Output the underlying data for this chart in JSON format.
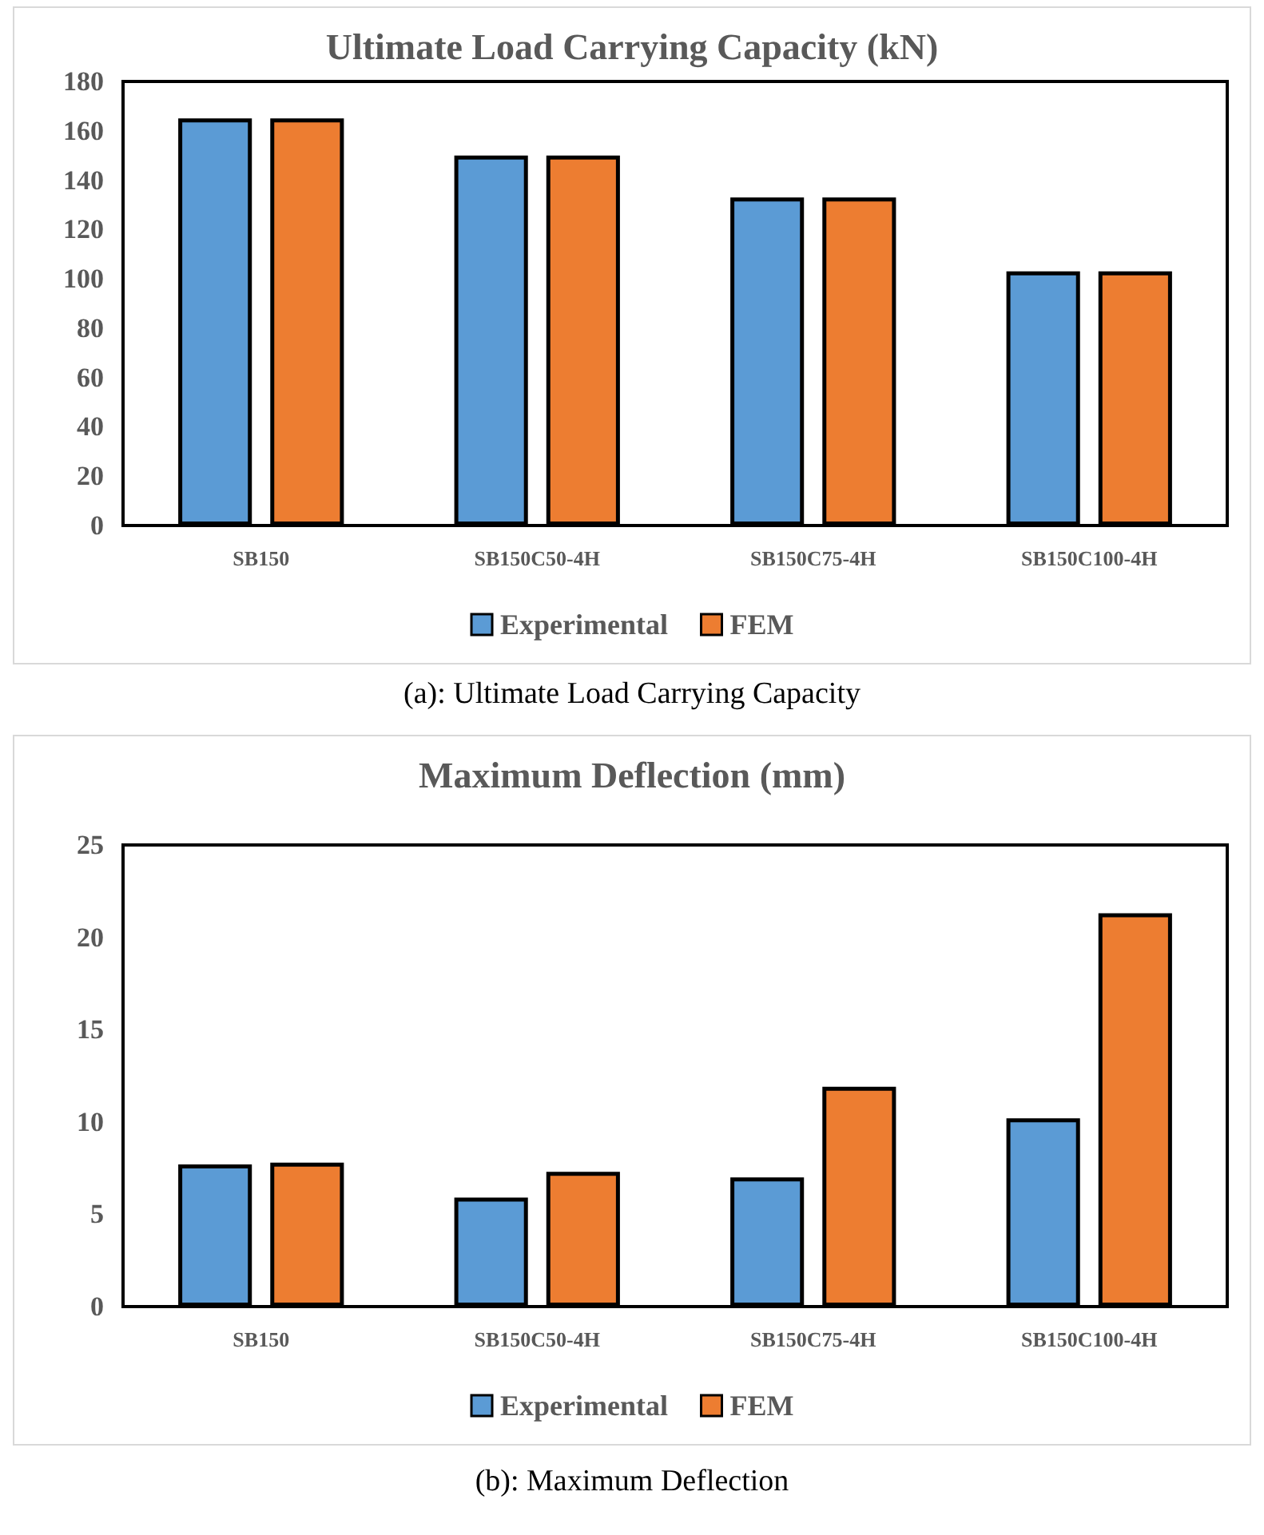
{
  "chart_data": [
    {
      "type": "bar",
      "title": "Ultimate Load Carrying Capacity (kN)",
      "categories": [
        "SB150",
        "SB150C50-4H",
        "SB150C75-4H",
        "SB150C100-4H"
      ],
      "series": [
        {
          "name": "Experimental",
          "color": "#5b9bd5",
          "values": [
            165,
            150,
            133,
            103
          ]
        },
        {
          "name": "FEM",
          "color": "#ed7d31",
          "values": [
            165,
            150,
            133,
            103
          ]
        }
      ],
      "ylim": [
        0,
        180
      ],
      "yticks": [
        0,
        20,
        40,
        60,
        80,
        100,
        120,
        140,
        160,
        180
      ],
      "legend": "bottom",
      "annotations": [
        "(a): Ultimate Load Carrying Capacity"
      ]
    },
    {
      "type": "bar",
      "title": "Maximum Deflection (mm)",
      "categories": [
        "SB150",
        "SB150C50-4H",
        "SB150C75-4H",
        "SB150C100-4H"
      ],
      "series": [
        {
          "name": "Experimental",
          "color": "#5b9bd5",
          "values": [
            7.7,
            5.9,
            7.0,
            10.2
          ]
        },
        {
          "name": "FEM",
          "color": "#ed7d31",
          "values": [
            7.8,
            7.3,
            11.9,
            21.3
          ]
        }
      ],
      "ylim": [
        0,
        25
      ],
      "yticks": [
        0,
        5,
        10,
        15,
        20,
        25
      ],
      "legend": "bottom",
      "annotations": [
        "(b): Maximum Deflection"
      ]
    }
  ]
}
